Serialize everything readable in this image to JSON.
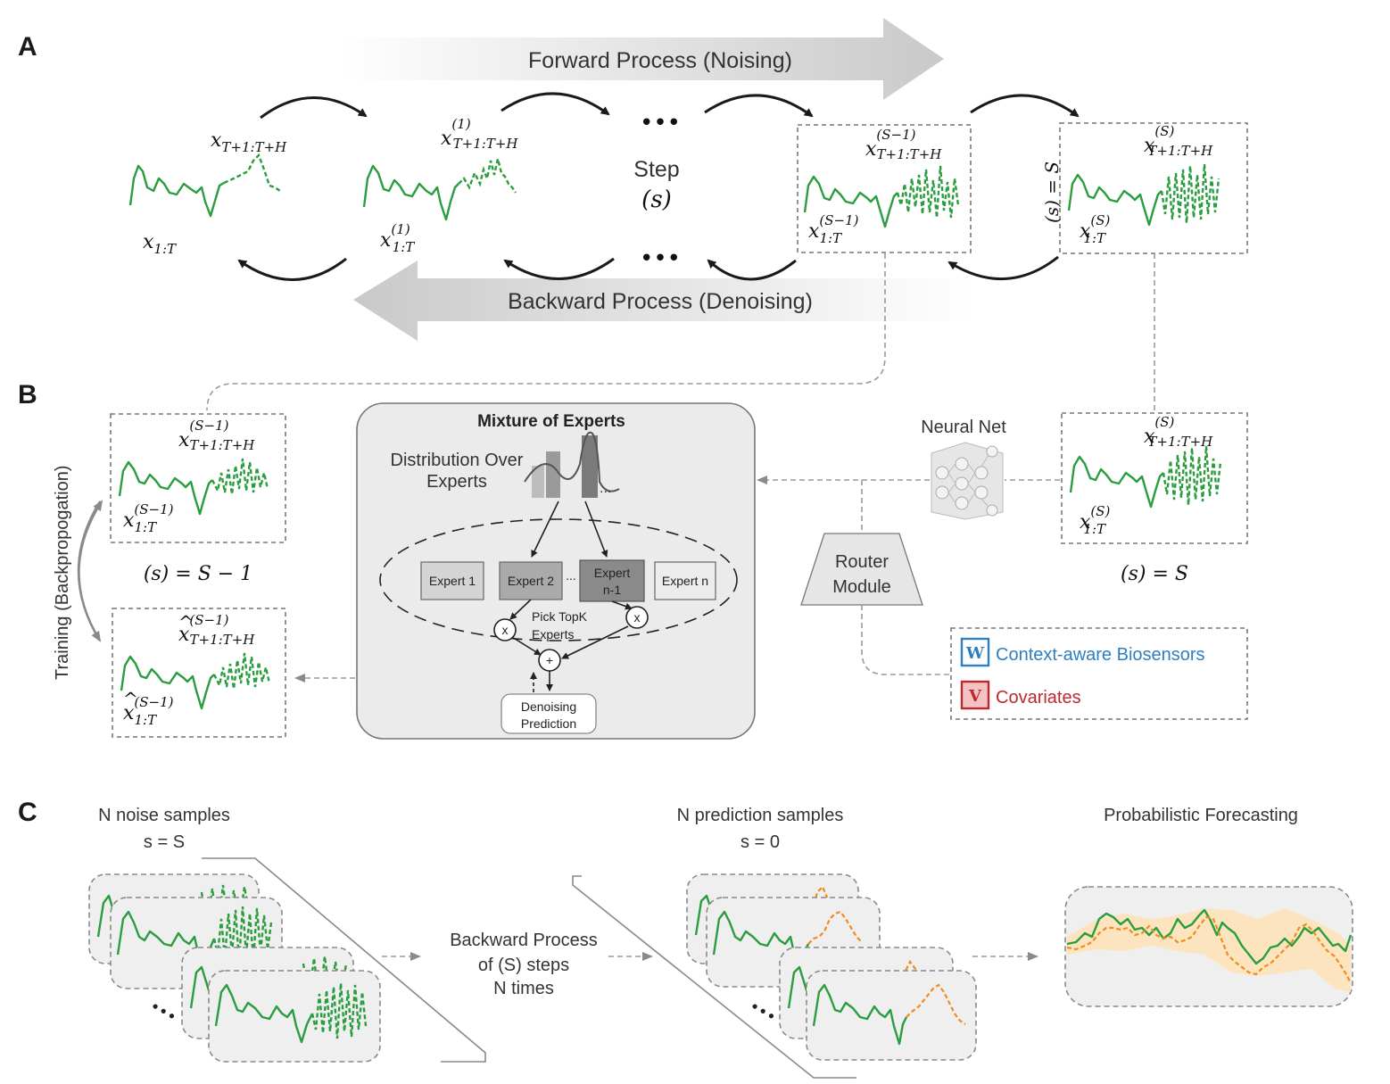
{
  "panels": {
    "a": "A",
    "b": "B",
    "c": "C"
  },
  "panel_a": {
    "forward_label": "Forward Process (Noising)",
    "backward_label": "Backward Process (Denoising)",
    "step_label": "Step",
    "step_var": "(s)",
    "dots": "•••",
    "x_future": "x",
    "x_future_sub": "T+1:T+H",
    "x_past": "x",
    "x_past_sub": "1:T",
    "sup_1": "(1)",
    "sup_s_minus_1": "(S−1)",
    "sup_s": "(S)",
    "s_equals_S_rot": "(s) = S"
  },
  "panel_b": {
    "moe_title": "Mixture of Experts",
    "dist_label_1": "Distribution Over",
    "dist_label_2": "Experts",
    "experts": [
      "Expert 1",
      "Expert 2",
      "Expert",
      "Expert n"
    ],
    "expert3_line2": "n-1",
    "ellipsis": "...",
    "bar_ellipsis": "...",
    "times": "x",
    "plus": "+",
    "pick_1": "Pick TopK",
    "pick_2": "Experts",
    "denoise_1": "Denoising",
    "denoise_2": "Prediction",
    "neural_net": "Neural Net",
    "router_1": "Router",
    "router_2": "Module",
    "w_icon": "W",
    "v_icon": "V",
    "biosensors": "Context-aware Biosensors",
    "covariates": "Covariates",
    "training": "Training (Backpropogation)",
    "s_minus_1_caption": "(s) = S − 1",
    "s_caption": "(s) = S",
    "hat_sup": "(S−1)"
  },
  "panel_c": {
    "noise_1": "N noise samples",
    "noise_2": "s = S",
    "pred_1": "N prediction samples",
    "pred_2": "s = 0",
    "bp_1": "Backward Process",
    "bp_2": "of (S) steps",
    "bp_3": "N times",
    "prob": "Probabilistic Forecasting",
    "dots_small": "•••"
  },
  "colors": {
    "green": "#2a9d3f",
    "orange": "#f08c1e",
    "band": "#fde3b8",
    "blue": "#2d7fc1",
    "red": "#c0282e"
  }
}
